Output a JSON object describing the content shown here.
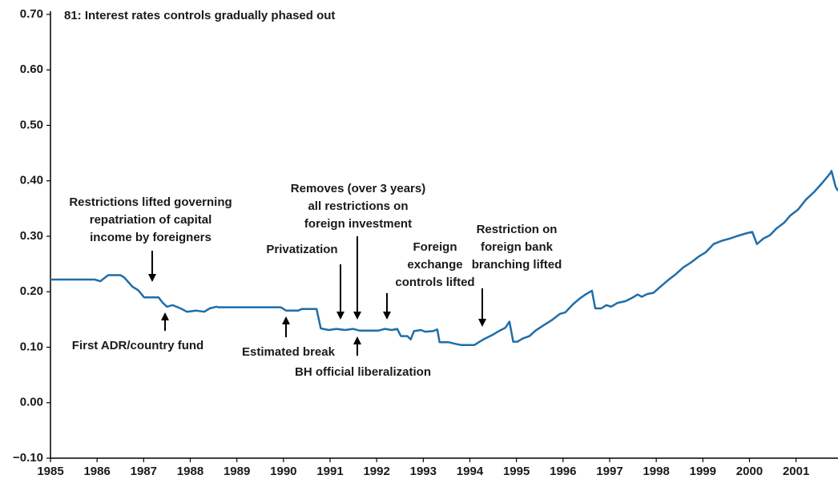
{
  "chart_data": {
    "type": "line",
    "series": [
      {
        "color": "#1f6ea8",
        "x": [
          1985.0,
          1985.95,
          1986.07,
          1986.24,
          1986.5,
          1986.58,
          1986.76,
          1986.88,
          1987.01,
          1987.32,
          1987.41,
          1987.5,
          1987.62,
          1987.79,
          1987.93,
          1988.13,
          1988.3,
          1988.42,
          1988.56,
          1988.6,
          1989.94,
          1990.06,
          1990.32,
          1990.39,
          1990.71,
          1990.8,
          1990.97,
          1991.14,
          1991.32,
          1991.49,
          1991.63,
          1992.04,
          1992.18,
          1992.32,
          1992.44,
          1992.52,
          1992.66,
          1992.73,
          1992.8,
          1992.95,
          1993.04,
          1993.21,
          1993.3,
          1993.35,
          1993.55,
          1993.69,
          1993.81,
          1994.1,
          1994.19,
          1994.29,
          1994.5,
          1994.62,
          1994.76,
          1994.85,
          1994.93,
          1995.02,
          1995.14,
          1995.28,
          1995.41,
          1995.59,
          1995.76,
          1995.93,
          1996.05,
          1996.22,
          1996.36,
          1996.48,
          1996.62,
          1996.69,
          1996.82,
          1996.93,
          1997.03,
          1997.17,
          1997.34,
          1997.48,
          1997.6,
          1997.69,
          1997.81,
          1997.94,
          1998.06,
          1998.24,
          1998.41,
          1998.58,
          1998.75,
          1998.92,
          1999.06,
          1999.23,
          1999.41,
          1999.58,
          1999.72,
          1999.92,
          2000.06,
          2000.16,
          2000.3,
          2000.44,
          2000.58,
          2000.75,
          2000.87,
          2001.04,
          2001.21,
          2001.39,
          2001.56,
          2001.73,
          2001.76,
          2001.85,
          2001.9
        ],
        "values": [
          0.222,
          0.222,
          0.219,
          0.23,
          0.23,
          0.226,
          0.209,
          0.203,
          0.19,
          0.19,
          0.18,
          0.173,
          0.176,
          0.17,
          0.164,
          0.166,
          0.164,
          0.17,
          0.173,
          0.172,
          0.172,
          0.166,
          0.166,
          0.169,
          0.169,
          0.134,
          0.131,
          0.133,
          0.131,
          0.133,
          0.13,
          0.13,
          0.133,
          0.131,
          0.133,
          0.12,
          0.12,
          0.114,
          0.129,
          0.131,
          0.128,
          0.129,
          0.132,
          0.109,
          0.109,
          0.106,
          0.104,
          0.104,
          0.109,
          0.114,
          0.123,
          0.129,
          0.135,
          0.146,
          0.11,
          0.11,
          0.116,
          0.12,
          0.13,
          0.14,
          0.149,
          0.16,
          0.163,
          0.178,
          0.188,
          0.195,
          0.202,
          0.17,
          0.17,
          0.176,
          0.173,
          0.18,
          0.183,
          0.189,
          0.195,
          0.191,
          0.196,
          0.198,
          0.207,
          0.22,
          0.231,
          0.244,
          0.253,
          0.264,
          0.271,
          0.286,
          0.292,
          0.296,
          0.3,
          0.305,
          0.308,
          0.286,
          0.296,
          0.302,
          0.314,
          0.325,
          0.337,
          0.348,
          0.366,
          0.38,
          0.396,
          0.413,
          0.418,
          0.389,
          0.382
        ]
      }
    ],
    "xlim": [
      1985,
      2001.9
    ],
    "xticks": [
      1985,
      1986,
      1987,
      1988,
      1989,
      1990,
      1991,
      1992,
      1993,
      1994,
      1995,
      1996,
      1997,
      1998,
      1999,
      2000,
      2001
    ],
    "ylim": [
      -0.1,
      0.7
    ],
    "yticks": [
      {
        "value": -0.1,
        "label": "−0.10"
      },
      {
        "value": 0,
        "label": "0.00"
      },
      {
        "value": 0.1,
        "label": "0.10"
      },
      {
        "value": 0.2,
        "label": "0.20"
      },
      {
        "value": 0.3,
        "label": "0.30"
      },
      {
        "value": 0.4,
        "label": "0.40"
      },
      {
        "value": 0.5,
        "label": "0.50"
      },
      {
        "value": 0.6,
        "label": "0.60"
      },
      {
        "value": 0.7,
        "label": "0.70"
      }
    ],
    "annotations": [
      [
        "81: Interest rates controls gradually phased out"
      ],
      [
        "Restrictions lifted governing",
        "repatriation of capital",
        "income by foreigners"
      ],
      [
        "First ADR/country fund"
      ],
      [
        "Privatization"
      ],
      [
        "Estimated break"
      ],
      [
        "Removes (over 3 years)",
        "all restrictions on",
        "foreign investment"
      ],
      [
        "BH official liberalization"
      ],
      [
        "Foreign",
        "exchange",
        "controls lifted"
      ],
      [
        "Restriction on",
        "foreign bank",
        "branching lifted"
      ]
    ]
  }
}
